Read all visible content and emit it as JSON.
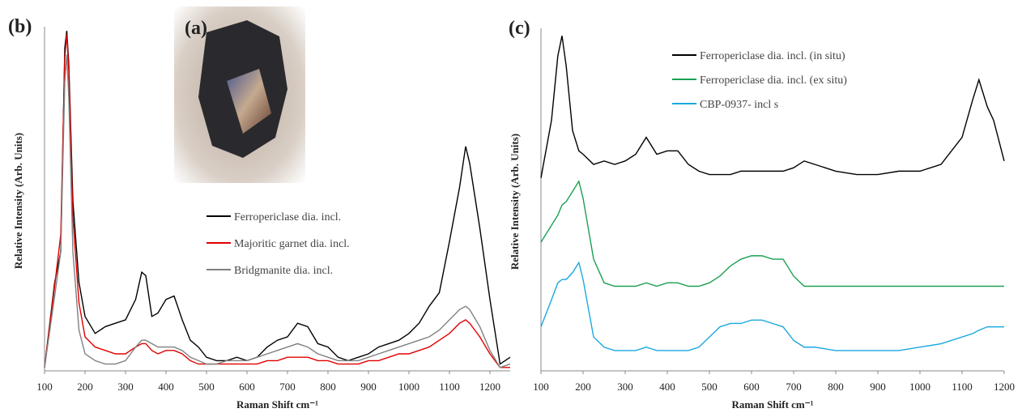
{
  "photo": {
    "label": "(a)"
  },
  "chart_data": [
    {
      "type": "line",
      "panel_label": "(b)",
      "xlabel": "Raman Shift cm⁻¹",
      "ylabel": "Relative Intensity (Arb. Units)",
      "xlim": [
        100,
        1250
      ],
      "xticks": [
        100,
        200,
        300,
        400,
        500,
        600,
        700,
        800,
        900,
        1000,
        1100,
        1200
      ],
      "ylim": [
        0,
        100
      ],
      "x": [
        100,
        125,
        140,
        150,
        155,
        160,
        170,
        185,
        200,
        225,
        250,
        275,
        300,
        325,
        340,
        350,
        365,
        380,
        400,
        420,
        440,
        460,
        480,
        500,
        525,
        550,
        575,
        600,
        625,
        650,
        675,
        700,
        725,
        750,
        775,
        800,
        825,
        850,
        875,
        900,
        925,
        950,
        975,
        1000,
        1025,
        1050,
        1075,
        1100,
        1125,
        1140,
        1150,
        1175,
        1200,
        1225,
        1250
      ],
      "series": [
        {
          "name": "Ferropericlase dia. incl.",
          "color": "#000000",
          "values": [
            1,
            26,
            35,
            95,
            100,
            90,
            50,
            26,
            16,
            11,
            13,
            14,
            15,
            21,
            29,
            28,
            16,
            17,
            21,
            22,
            15,
            9,
            7,
            4,
            3,
            3,
            4,
            3,
            4,
            7,
            9,
            10,
            14,
            13,
            8,
            7,
            4,
            3,
            4,
            5,
            7,
            8,
            9,
            11,
            14,
            19,
            23,
            38,
            54,
            66,
            61,
            42,
            21,
            2,
            4
          ]
        },
        {
          "name": "Majoritic garnet dia. incl.",
          "color": "#e00000",
          "values": [
            1,
            25,
            40,
            92,
            99,
            88,
            45,
            20,
            10,
            7,
            6,
            5,
            5,
            7,
            8,
            8,
            6,
            5,
            6,
            6,
            5,
            3,
            2,
            2,
            2,
            2,
            2,
            2,
            2,
            3,
            3,
            4,
            4,
            4,
            3,
            3,
            2,
            2,
            2,
            3,
            3,
            4,
            5,
            5,
            6,
            7,
            9,
            11,
            14,
            15,
            14,
            10,
            5,
            1,
            1
          ]
        },
        {
          "name": "Bridgmanite dia. incl.",
          "color": "#808080",
          "values": [
            1,
            22,
            35,
            85,
            93,
            80,
            35,
            12,
            5,
            3,
            2,
            2,
            3,
            7,
            9,
            9,
            8,
            7,
            7,
            7,
            6,
            4,
            3,
            2,
            2,
            3,
            3,
            3,
            4,
            5,
            6,
            7,
            8,
            7,
            5,
            4,
            3,
            3,
            3,
            4,
            5,
            6,
            7,
            8,
            9,
            10,
            12,
            15,
            18,
            19,
            18,
            13,
            6,
            1,
            2
          ]
        }
      ]
    },
    {
      "type": "line",
      "panel_label": "(c)",
      "xlabel": "Raman Shift cm⁻¹",
      "ylabel": "Relative Intensity (Arb. Units)",
      "xlim": [
        100,
        1200
      ],
      "xticks": [
        100,
        200,
        300,
        400,
        500,
        600,
        700,
        800,
        900,
        1000,
        1100,
        1200
      ],
      "ylim": [
        0,
        100
      ],
      "x": [
        100,
        125,
        140,
        150,
        160,
        175,
        190,
        200,
        225,
        250,
        275,
        300,
        325,
        350,
        375,
        400,
        425,
        450,
        475,
        500,
        525,
        550,
        575,
        600,
        625,
        650,
        675,
        700,
        725,
        750,
        800,
        850,
        900,
        950,
        1000,
        1050,
        1100,
        1125,
        1140,
        1160,
        1175,
        1200
      ],
      "series": [
        {
          "name": "Ferropericlase dia. incl. (in situ)",
          "color": "#000000",
          "values": [
            57,
            74,
            93,
            99,
            90,
            71,
            65,
            64,
            61,
            62,
            61,
            62,
            64,
            69,
            64,
            65,
            65,
            61,
            59,
            58,
            58,
            58,
            59,
            59,
            59,
            59,
            59,
            60,
            62,
            61,
            59,
            58,
            58,
            59,
            59,
            61,
            69,
            80,
            86,
            78,
            74,
            62
          ]
        },
        {
          "name": "Ferropericlase dia. incl. (ex situ)",
          "color": "#1aa050",
          "values": [
            38,
            43,
            46,
            49,
            50,
            53,
            56,
            51,
            33,
            26,
            25,
            25,
            25,
            26,
            25,
            26,
            26,
            25,
            25,
            26,
            28,
            31,
            33,
            34,
            34,
            33,
            33,
            28,
            25,
            25,
            25,
            25,
            25,
            25,
            25,
            25,
            25,
            25,
            25,
            25,
            25,
            25
          ]
        },
        {
          "name": "CBP-0937- incl s",
          "color": "#1aa8e0",
          "values": [
            13,
            21,
            26,
            27,
            27,
            29,
            32,
            27,
            10,
            7,
            6,
            6,
            6,
            7,
            6,
            6,
            6,
            6,
            7,
            10,
            13,
            14,
            14,
            15,
            15,
            14,
            13,
            9,
            7,
            7,
            6,
            6,
            6,
            6,
            7,
            8,
            10,
            11,
            12,
            13,
            13,
            13
          ]
        }
      ]
    }
  ]
}
